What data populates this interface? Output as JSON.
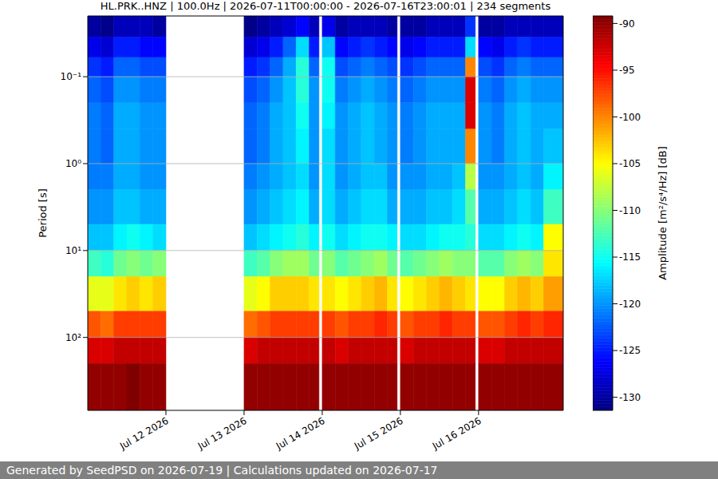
{
  "chart_data": {
    "type": "heatmap",
    "title": "HL.PRK..HNZ | 100.0Hz | 2026-07-11T00:00:00 - 2026-07-16T23:00:01 | 234 segments",
    "y_label": "Period [s]",
    "footer": "Generated by SeedPSD on 2026-07-19 | Calculations updated on 2026-07-17",
    "color": "jet",
    "log": "y",
    "grid": "y",
    "x_edges": [
      "2026-07-11T00:00",
      "2026-07-11T04:00",
      "2026-07-11T08:00",
      "2026-07-11T12:00",
      "2026-07-11T16:00",
      "2026-07-11T20:00",
      "2026-07-12T00:00",
      "2026-07-13T00:00",
      "2026-07-13T04:00",
      "2026-07-13T08:00",
      "2026-07-13T12:00",
      "2026-07-13T16:00",
      "2026-07-13T20:00",
      "2026-07-13T23:00",
      "2026-07-14T00:00",
      "2026-07-14T04:00",
      "2026-07-14T08:00",
      "2026-07-14T12:00",
      "2026-07-14T16:00",
      "2026-07-14T20:00",
      "2026-07-14T23:00",
      "2026-07-15T00:00",
      "2026-07-15T04:00",
      "2026-07-15T08:00",
      "2026-07-15T12:00",
      "2026-07-15T16:00",
      "2026-07-15T20:00",
      "2026-07-15T23:00",
      "2026-07-16T00:00",
      "2026-07-16T04:00",
      "2026-07-16T08:00",
      "2026-07-16T12:00",
      "2026-07-16T16:00",
      "2026-07-16T20:00",
      "2026-07-17T02:00"
    ],
    "y_edges": [
      0.02,
      0.035,
      0.06,
      0.1,
      0.2,
      0.4,
      1,
      2,
      5,
      10,
      20,
      50,
      100,
      200,
      690
    ],
    "values": [
      [
        -130,
        -127,
        -124,
        -122,
        -121,
        -121,
        -121,
        -120,
        -118,
        -113,
        -106,
        -98,
        -93,
        -90
      ],
      [
        -131,
        -128,
        -125,
        -123,
        -122,
        -122,
        -121,
        -120,
        -118,
        -114,
        -106,
        -99,
        -93,
        -90
      ],
      [
        -129,
        -125,
        -122,
        -120,
        -119,
        -119,
        -119,
        -118,
        -116,
        -111,
        -104,
        -97,
        -92,
        -90
      ],
      [
        -129,
        -125,
        -122,
        -120,
        -119,
        -119,
        -119,
        -118,
        -115,
        -110,
        -103,
        -97,
        -92,
        -89
      ],
      [
        -129,
        -126,
        -123,
        -121,
        -120,
        -120,
        -120,
        -119,
        -116,
        -111,
        -104,
        -97,
        -92,
        -90
      ],
      [
        -130,
        -126,
        -123,
        -121,
        -120,
        -120,
        -120,
        -119,
        -117,
        -110,
        -103,
        -97,
        -92,
        -90
      ],
      null,
      [
        -131,
        -128,
        -125,
        -123,
        -122,
        -122,
        -121,
        -120,
        -118,
        -113,
        -106,
        -99,
        -93,
        -90
      ],
      [
        -130,
        -127,
        -124,
        -122,
        -121,
        -121,
        -120,
        -119,
        -117,
        -112,
        -105,
        -98,
        -92,
        -90
      ],
      [
        -129,
        -125,
        -122,
        -120,
        -119,
        -119,
        -119,
        -118,
        -116,
        -110,
        -103,
        -97,
        -92,
        -90
      ],
      [
        -128,
        -122,
        -119,
        -118,
        -118,
        -118,
        -118,
        -117,
        -115,
        -109,
        -103,
        -97,
        -92,
        -90
      ],
      [
        -126,
        -117,
        -114,
        -114,
        -115,
        -116,
        -117,
        -116,
        -114,
        -109,
        -103,
        -97,
        -92,
        -90
      ],
      [
        -129,
        -125,
        -122,
        -120,
        -120,
        -120,
        -120,
        -119,
        -116,
        -111,
        -104,
        -97,
        -92,
        -90
      ],
      null,
      [
        -127,
        -118,
        -115,
        -115,
        -116,
        -117,
        -117,
        -117,
        -115,
        -110,
        -104,
        -97,
        -92,
        -90
      ],
      [
        -130,
        -126,
        -123,
        -121,
        -120,
        -120,
        -120,
        -119,
        -117,
        -112,
        -105,
        -98,
        -93,
        -90
      ],
      [
        -129,
        -125,
        -122,
        -120,
        -119,
        -119,
        -119,
        -118,
        -116,
        -111,
        -104,
        -97,
        -92,
        -90
      ],
      [
        -129,
        -124,
        -121,
        -119,
        -118,
        -118,
        -118,
        -117,
        -115,
        -110,
        -103,
        -97,
        -92,
        -90
      ],
      [
        -129,
        -125,
        -122,
        -120,
        -119,
        -119,
        -118,
        -117,
        -115,
        -109,
        -102,
        -96,
        -92,
        -90
      ],
      [
        -130,
        -126,
        -123,
        -121,
        -120,
        -120,
        -120,
        -119,
        -116,
        -111,
        -104,
        -97,
        -92,
        -90
      ],
      null,
      [
        -130,
        -127,
        -124,
        -122,
        -121,
        -121,
        -120,
        -119,
        -117,
        -112,
        -105,
        -98,
        -93,
        -90
      ],
      [
        -130,
        -126,
        -123,
        -121,
        -120,
        -120,
        -120,
        -119,
        -117,
        -111,
        -104,
        -97,
        -92,
        -90
      ],
      [
        -129,
        -125,
        -122,
        -120,
        -119,
        -119,
        -119,
        -118,
        -116,
        -110,
        -103,
        -97,
        -92,
        -90
      ],
      [
        -129,
        -125,
        -122,
        -120,
        -119,
        -119,
        -119,
        -118,
        -115,
        -109,
        -102,
        -96,
        -92,
        -90
      ],
      [
        -129,
        -125,
        -122,
        -120,
        -119,
        -119,
        -118,
        -117,
        -115,
        -110,
        -103,
        -97,
        -92,
        -90
      ],
      [
        -124,
        -117,
        -100,
        -93,
        -93,
        -100,
        -108,
        -112,
        -114,
        -110,
        -104,
        -97,
        -92,
        -90
      ],
      null,
      [
        -130,
        -126,
        -123,
        -121,
        -120,
        -120,
        -120,
        -119,
        -117,
        -112,
        -105,
        -98,
        -93,
        -90
      ],
      [
        -130,
        -127,
        -124,
        -122,
        -121,
        -121,
        -120,
        -119,
        -117,
        -112,
        -105,
        -98,
        -93,
        -90
      ],
      [
        -129,
        -125,
        -122,
        -120,
        -119,
        -119,
        -119,
        -118,
        -116,
        -110,
        -103,
        -97,
        -92,
        -90
      ],
      [
        -129,
        -124,
        -121,
        -119,
        -118,
        -118,
        -118,
        -117,
        -115,
        -109,
        -102,
        -96,
        -92,
        -90
      ],
      [
        -129,
        -125,
        -122,
        -120,
        -119,
        -119,
        -119,
        -118,
        -116,
        -110,
        -103,
        -97,
        -92,
        -90
      ],
      [
        -129,
        -125,
        -122,
        -120,
        -119,
        -118,
        -116,
        -113,
        -105,
        -104,
        -101,
        -96,
        -92,
        -90
      ]
    ],
    "xlim": [
      "2026-07-11T00:00",
      "2026-07-17T02:00"
    ],
    "xticks": [
      {
        "value": "2026-07-12T00:00",
        "label": "Jul 12 2026"
      },
      {
        "value": "2026-07-13T00:00",
        "label": "Jul 13 2026"
      },
      {
        "value": "2026-07-14T00:00",
        "label": "Jul 14 2026"
      },
      {
        "value": "2026-07-15T00:00",
        "label": "Jul 15 2026"
      },
      {
        "value": "2026-07-16T00:00",
        "label": "Jul 16 2026"
      }
    ],
    "ylim": [
      0.02,
      690
    ],
    "yticks": [
      {
        "value": 0.1,
        "label": "10⁻¹"
      },
      {
        "value": 1,
        "label": "10⁰"
      },
      {
        "value": 10,
        "label": "10¹"
      },
      {
        "value": 100,
        "label": "10²"
      }
    ],
    "colorbar": {
      "label": "Amplitude [m²/s⁴/Hz] [dB]",
      "range": [
        -131.4,
        -89.2
      ],
      "ticks": [
        -90,
        -95,
        -100,
        -105,
        -110,
        -115,
        -120,
        -125,
        -130
      ]
    }
  }
}
